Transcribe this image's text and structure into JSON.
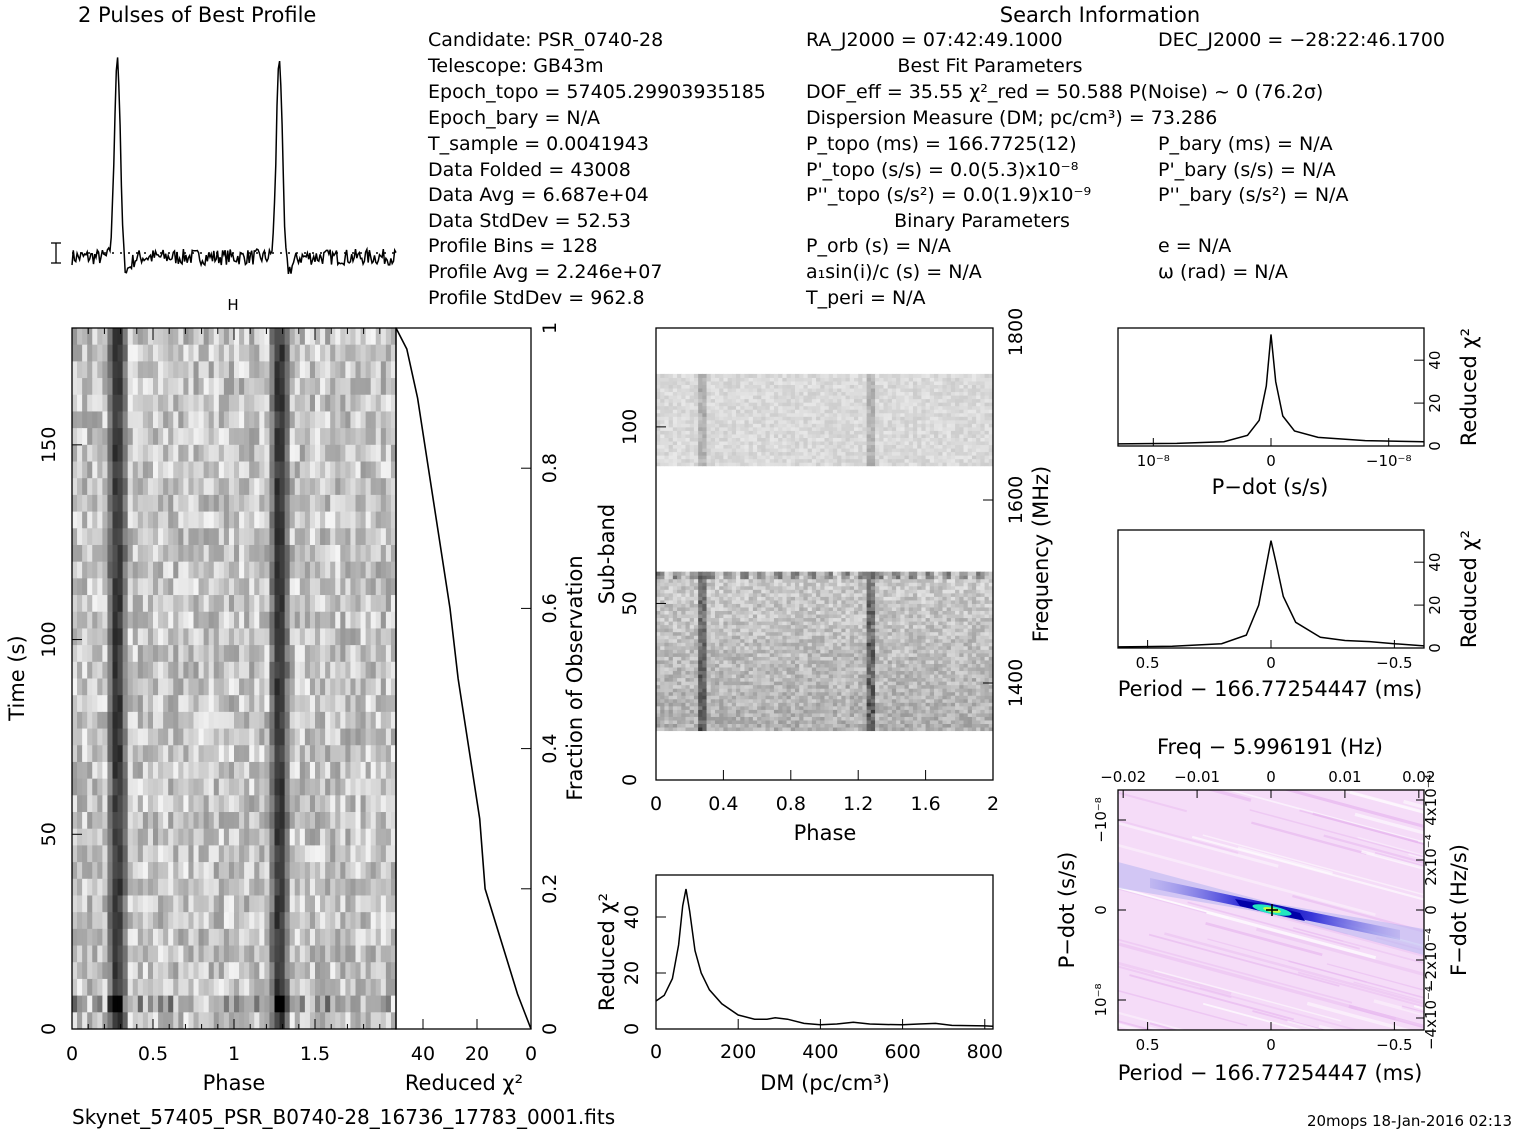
{
  "header": {
    "profile_title": "2 Pulses of Best Profile",
    "search_title": "Search Information"
  },
  "info": {
    "candidate": "Candidate:  PSR_0740-28",
    "telescope": "Telescope:  GB43m",
    "epoch_topo": "Epoch_topo = 57405.29903935185",
    "epoch_bary": "Epoch_bary = N/A",
    "tsample": "T_sample      =  0.0041943",
    "data_folded": "Data Folded   =  43008",
    "data_avg": "Data Avg      =  6.687e+04",
    "data_stddev": "Data StdDev   =  52.53",
    "profile_bins": "Profile Bins  =  128",
    "profile_avg": "Profile Avg   =  2.246e+07",
    "profile_stddev": "Profile StdDev =  962.8",
    "ra": "RA_J2000 = 07:42:49.1000",
    "dec": "DEC_J2000 = −28:22:46.1700",
    "best_fit_title": "Best Fit Parameters",
    "dof": "DOF_eff = 35.55  χ²_red = 50.588  P(Noise) ~ 0   (76.2σ)",
    "dm_line": "Dispersion Measure (DM; pc/cm³) = 73.286",
    "p_topo": "P_topo (ms) =  166.7725(12)",
    "p_bary": "P_bary (ms) = N/A",
    "pd_topo": "P'_topo (s/s) = 0.0(5.3)x10⁻⁸",
    "pd_bary": "P'_bary (s/s) = N/A",
    "pdd_topo": "P''_topo (s/s²) = 0.0(1.9)x10⁻⁹",
    "pdd_bary": "P''_bary (s/s²) = N/A",
    "binary_title": "Binary Parameters",
    "porb": "P_orb (s) = N/A",
    "ecc": "e = N/A",
    "a1sini": "a₁sin(i)/c (s) = N/A",
    "omega": "ω (rad) = N/A",
    "tperi": "T_peri = N/A"
  },
  "footer": {
    "filename": "Skynet_57405_PSR_B0740-28_16736_17783_0001.fits",
    "stamp": "20mops 18-Jan-2016 02:13"
  },
  "colors": {
    "ink": "#000000",
    "heatmap_light": "#f4d6f8",
    "heatmap_dark": "#1a1ad0",
    "heatmap_peak": "#22e6c0"
  },
  "chart_data": [
    {
      "type": "line",
      "id": "profile",
      "xlim": [
        0,
        2
      ],
      "peaks_at_phase": [
        0.28,
        1.28
      ],
      "error_bar": true,
      "dotted_baseline": true
    },
    {
      "type": "heatmap",
      "id": "time_phase",
      "xlabel": "Phase",
      "ylabel": "Time (s)",
      "xlim": [
        0,
        2
      ],
      "xticks": [
        "0",
        "0.5",
        "1",
        "1.5"
      ],
      "ylim": [
        0,
        180
      ],
      "yticks": [
        "0",
        "50",
        "100",
        "150"
      ],
      "pulse_phase": [
        0.28,
        1.28
      ]
    },
    {
      "type": "line",
      "id": "chi2_vs_fraction",
      "xlabel": "Reduced χ²",
      "ylabel": "Fraction of Observation",
      "xlim": [
        50,
        0
      ],
      "xticks": [
        "40",
        "20",
        "0"
      ],
      "ylim": [
        0,
        1
      ],
      "yticks": [
        "0",
        "0.2",
        "0.4",
        "0.6",
        "0.8",
        "1"
      ],
      "points": [
        [
          0,
          0
        ],
        [
          2,
          0.02
        ],
        [
          5,
          0.05
        ],
        [
          9,
          0.1
        ],
        [
          13,
          0.15
        ],
        [
          17,
          0.2
        ],
        [
          19,
          0.3
        ],
        [
          23,
          0.4
        ],
        [
          27,
          0.5
        ],
        [
          30,
          0.6
        ],
        [
          34,
          0.7
        ],
        [
          38,
          0.8
        ],
        [
          42,
          0.9
        ],
        [
          46,
          0.97
        ],
        [
          50,
          1.0
        ]
      ]
    },
    {
      "type": "heatmap",
      "id": "subband_phase",
      "xlabel": "Phase",
      "ylabel": "Sub-band",
      "y2label": "Frequency (MHz)",
      "xlim": [
        0,
        2
      ],
      "xticks": [
        "0",
        "0.4",
        "0.8",
        "1.2",
        "1.6",
        "2"
      ],
      "ylim": [
        0,
        128
      ],
      "yticks": [
        "0",
        "50",
        "100"
      ],
      "y2ticks": [
        "1400",
        "1600",
        "1800"
      ],
      "data_bands": [
        [
          14,
          59
        ],
        [
          89,
          115
        ]
      ]
    },
    {
      "type": "line",
      "id": "dm_curve",
      "xlabel": "DM (pc/cm³)",
      "ylabel": "Reduced χ²",
      "xlim": [
        0,
        820
      ],
      "xticks": [
        "0",
        "200",
        "400",
        "600",
        "800"
      ],
      "ylim": [
        0,
        55
      ],
      "yticks": [
        "0",
        "20",
        "40"
      ],
      "points": [
        [
          0,
          10
        ],
        [
          20,
          12
        ],
        [
          40,
          18
        ],
        [
          55,
          30
        ],
        [
          65,
          44
        ],
        [
          73,
          50
        ],
        [
          82,
          42
        ],
        [
          95,
          28
        ],
        [
          110,
          20
        ],
        [
          130,
          14
        ],
        [
          160,
          9
        ],
        [
          200,
          5
        ],
        [
          240,
          3.5
        ],
        [
          270,
          3.5
        ],
        [
          290,
          4
        ],
        [
          320,
          3.5
        ],
        [
          360,
          2
        ],
        [
          400,
          1.5
        ],
        [
          440,
          1.8
        ],
        [
          480,
          2.4
        ],
        [
          520,
          1.8
        ],
        [
          560,
          1.6
        ],
        [
          600,
          1.5
        ],
        [
          640,
          1.8
        ],
        [
          680,
          2
        ],
        [
          720,
          1.3
        ],
        [
          760,
          1.2
        ],
        [
          800,
          1.1
        ],
        [
          820,
          1
        ]
      ]
    },
    {
      "type": "line",
      "id": "pdot_curve",
      "xlabel": "P−dot (s/s)",
      "y2label": "Reduced χ²",
      "xlim": [
        1.3,
        -1.3
      ],
      "xticks": [
        "10⁻⁸",
        "0",
        "−10⁻⁸"
      ],
      "ylim": [
        0,
        55
      ],
      "yticks": [
        "0",
        "20",
        "40"
      ],
      "points": [
        [
          1.3,
          1
        ],
        [
          0.8,
          1.2
        ],
        [
          0.4,
          2
        ],
        [
          0.2,
          5
        ],
        [
          0.1,
          12
        ],
        [
          0.04,
          28
        ],
        [
          0,
          52
        ],
        [
          -0.04,
          30
        ],
        [
          -0.1,
          14
        ],
        [
          -0.2,
          7
        ],
        [
          -0.4,
          4
        ],
        [
          -0.8,
          2.5
        ],
        [
          -1.3,
          2
        ]
      ]
    },
    {
      "type": "line",
      "id": "period_curve",
      "xlabel": "Period − 166.77254447 (ms)",
      "y2label": "Reduced χ²",
      "xlim": [
        0.62,
        -0.62
      ],
      "xticks": [
        "0.5",
        "0",
        "−0.5"
      ],
      "ylim": [
        0,
        55
      ],
      "yticks": [
        "0",
        "20",
        "40"
      ],
      "points": [
        [
          0.62,
          0.5
        ],
        [
          0.4,
          0.8
        ],
        [
          0.2,
          2
        ],
        [
          0.1,
          6
        ],
        [
          0.05,
          20
        ],
        [
          0.02,
          38
        ],
        [
          0,
          50
        ],
        [
          -0.02,
          40
        ],
        [
          -0.05,
          24
        ],
        [
          -0.1,
          12
        ],
        [
          -0.2,
          5
        ],
        [
          -0.3,
          3.5
        ],
        [
          -0.4,
          3
        ],
        [
          -0.5,
          2
        ],
        [
          -0.62,
          1
        ]
      ]
    },
    {
      "type": "heatmap",
      "id": "pdot_period",
      "title": "Freq − 5.996191 (Hz)",
      "xlabel": "Period − 166.77254447 (ms)",
      "ylabel": "P−dot (s/s)",
      "y2label": "F−dot (Hz/s)",
      "xlim": [
        0.62,
        -0.62
      ],
      "xticks": [
        "0.5",
        "0",
        "−0.5"
      ],
      "x2ticks": [
        "−0.02",
        "−0.01",
        "0",
        "0.01",
        "0.02"
      ],
      "ylim": [
        1.3,
        -1.3
      ],
      "yticks": [
        "−10⁻⁸",
        "0",
        "10⁻⁸"
      ],
      "y2ticks": [
        "−4x10⁻⁴",
        "−2x10⁻⁴",
        "0",
        "2x10⁻⁴",
        "4x10⁻⁴"
      ],
      "best": [
        0,
        0
      ]
    }
  ]
}
